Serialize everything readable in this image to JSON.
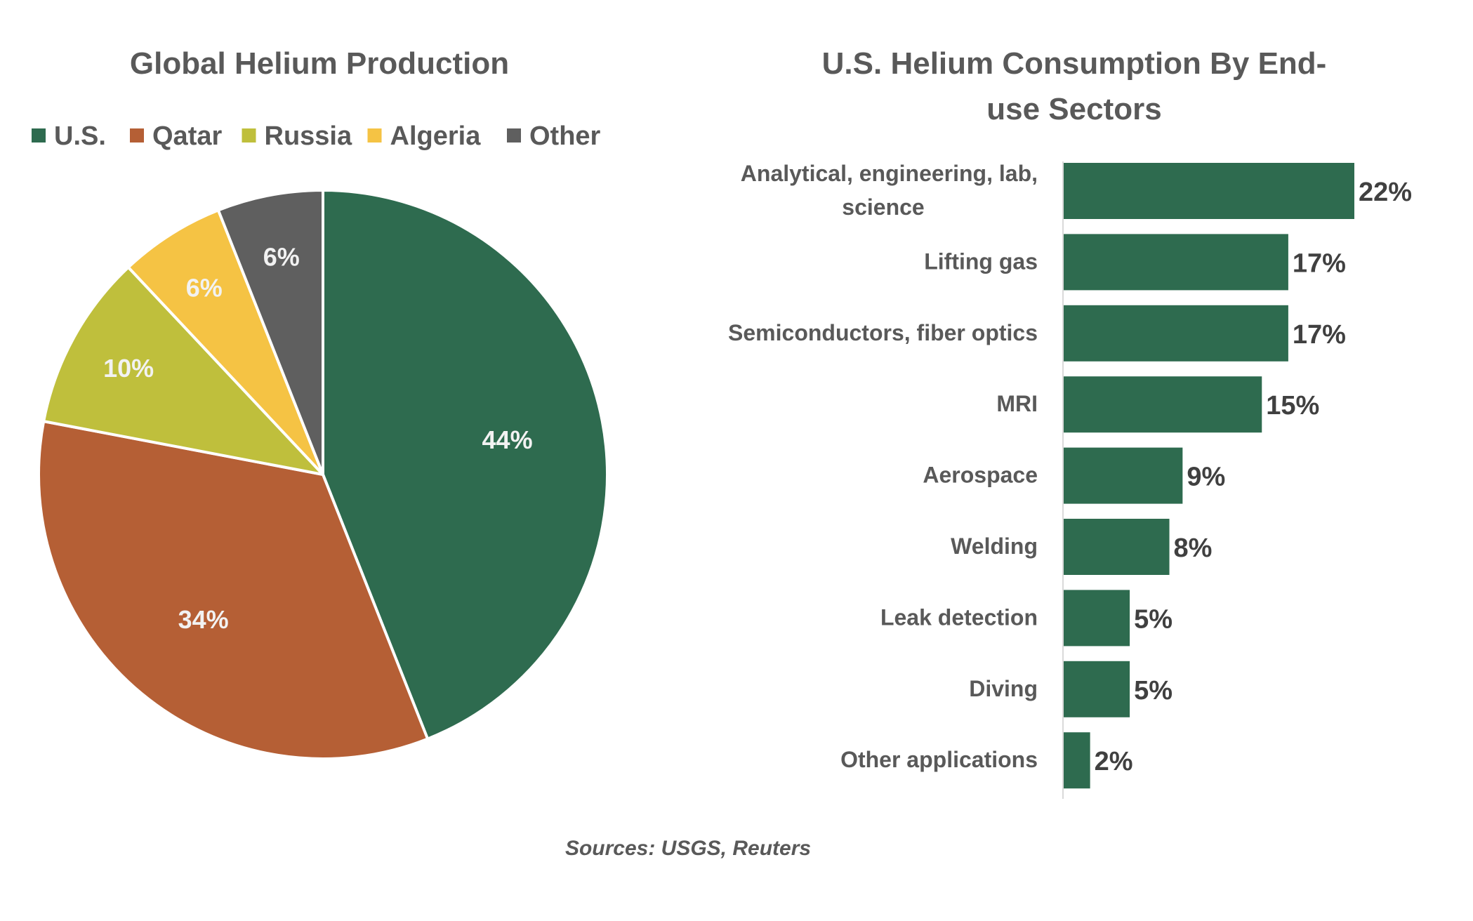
{
  "colors": {
    "us": "#2e6b4f",
    "qatar": "#b55f35",
    "russia": "#bfbf3c",
    "algeria": "#f5c344",
    "other": "#5f5f5f",
    "bar": "#2e6b4f",
    "text": "#595959",
    "axis": "#d9d9d9"
  },
  "chart_data": [
    {
      "type": "pie",
      "title": "Global Helium Production",
      "legend_position": "top",
      "slices": [
        {
          "name": "U.S.",
          "value": 44,
          "label": "44%",
          "color": "#2e6b4f"
        },
        {
          "name": "Qatar",
          "value": 34,
          "label": "34%",
          "color": "#b55f35"
        },
        {
          "name": "Russia",
          "value": 10,
          "label": "10%",
          "color": "#bfbf3c"
        },
        {
          "name": "Algeria",
          "value": 6,
          "label": "6%",
          "color": "#f5c344"
        },
        {
          "name": "Other",
          "value": 6,
          "label": "6%",
          "color": "#5f5f5f"
        }
      ]
    },
    {
      "type": "bar",
      "orientation": "horizontal",
      "title_lines": [
        "U.S. Helium Consumption By End-",
        "use Sectors"
      ],
      "categories": [
        [
          "Analytical, engineering, lab,",
          "science"
        ],
        [
          "Lifting gas"
        ],
        [
          "Semiconductors, fiber optics"
        ],
        [
          "MRI"
        ],
        [
          "Aerospace"
        ],
        [
          "Welding"
        ],
        [
          "Leak detection"
        ],
        [
          "Diving"
        ],
        [
          "Other applications"
        ]
      ],
      "values": [
        22,
        17,
        17,
        15,
        9,
        8,
        5,
        5,
        2
      ],
      "value_labels": [
        "22%",
        "17%",
        "17%",
        "15%",
        "9%",
        "8%",
        "5%",
        "5%",
        "2%"
      ],
      "xlim": [
        0,
        22
      ],
      "grid": false
    }
  ],
  "source": "Sources: USGS, Reuters"
}
